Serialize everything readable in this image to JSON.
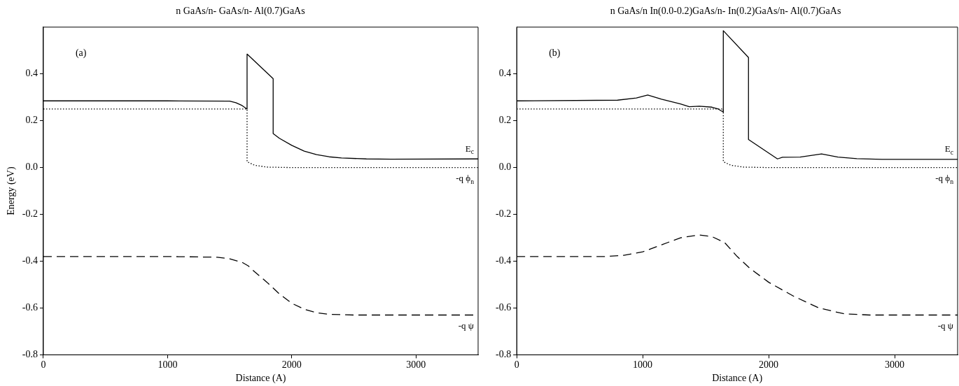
{
  "chart_data": [
    {
      "type": "line",
      "title": "n GaAs/n- GaAs/n- Al(0.7)GaAs",
      "xlabel": "Distance (A)",
      "ylabel": "Energy (eV)",
      "annotations": [
        "(a)"
      ],
      "xlim": [
        0,
        3500
      ],
      "xticks": [
        0,
        1000,
        2000,
        3000
      ],
      "ylim": [
        -0.8,
        0.6
      ],
      "yticks": [
        -0.8,
        -0.6,
        -0.4,
        -0.2,
        {
          "value": 0,
          "label": "0.0"
        },
        0.2,
        0.4
      ],
      "grid": false,
      "legend": false,
      "marker": "none",
      "series": [
        {
          "name": "E$_{c}$",
          "color": "#000000",
          "line_style": "solid",
          "x": [
            0,
            1000,
            1500,
            1550,
            1600,
            1640,
            1640,
            1850,
            1850,
            1900,
            2000,
            2100,
            2200,
            2300,
            2400,
            2600,
            2800,
            3500
          ],
          "values": [
            0.285,
            0.285,
            0.284,
            0.277,
            0.265,
            0.25,
            0.485,
            0.38,
            0.145,
            0.125,
            0.095,
            0.07,
            0.055,
            0.046,
            0.041,
            0.037,
            0.036,
            0.037
          ]
        },
        {
          "name": "-q ϕ$_{n}$",
          "color": "#000000",
          "line_style": "dotted",
          "x": [
            0,
            1640,
            1640,
            1700,
            1800,
            2000,
            3500
          ],
          "values": [
            0.25,
            0.25,
            0.025,
            0.01,
            0.002,
            0.0,
            0.0
          ]
        },
        {
          "name": "-q ψ",
          "color": "#000000",
          "line_style": "dashed",
          "x": [
            0,
            1000,
            1400,
            1500,
            1600,
            1650,
            1700,
            1800,
            1900,
            2000,
            2100,
            2200,
            2300,
            2500,
            3500
          ],
          "values": [
            -0.38,
            -0.38,
            -0.383,
            -0.39,
            -0.405,
            -0.42,
            -0.445,
            -0.49,
            -0.54,
            -0.58,
            -0.605,
            -0.62,
            -0.627,
            -0.63,
            -0.63
          ]
        }
      ]
    },
    {
      "type": "line",
      "title": "n GaAs/n In(0.0-0.2)GaAs/n- In(0.2)GaAs/n- Al(0.7)GaAs",
      "xlabel": "Distance (A)",
      "annotations": [
        "(b)"
      ],
      "xlim": [
        0,
        3500
      ],
      "xticks": [
        0,
        1000,
        2000,
        3000
      ],
      "ylim": [
        -0.8,
        0.6
      ],
      "yticks": [
        -0.8,
        -0.6,
        -0.4,
        -0.2,
        {
          "value": 0,
          "label": "0.0"
        },
        0.2,
        0.4
      ],
      "grid": false,
      "legend": false,
      "marker": "none",
      "series": [
        {
          "name": "E$_{c}$",
          "color": "#000000",
          "line_style": "solid",
          "x": [
            0,
            800,
            950,
            1040,
            1150,
            1300,
            1370,
            1450,
            1550,
            1600,
            1640,
            1640,
            1840,
            1840,
            2070,
            2110,
            2250,
            2420,
            2550,
            2700,
            2900,
            3500
          ],
          "values": [
            0.285,
            0.288,
            0.297,
            0.31,
            0.292,
            0.272,
            0.26,
            0.262,
            0.258,
            0.25,
            0.237,
            0.585,
            0.47,
            0.12,
            0.037,
            0.044,
            0.045,
            0.058,
            0.045,
            0.038,
            0.035,
            0.035
          ]
        },
        {
          "name": "-q ϕ$_{n}$",
          "color": "#000000",
          "line_style": "dotted",
          "x": [
            0,
            1640,
            1640,
            1700,
            1800,
            2000,
            3500
          ],
          "values": [
            0.25,
            0.25,
            0.025,
            0.01,
            0.002,
            0.0,
            0.0
          ]
        },
        {
          "name": "-q ψ",
          "color": "#000000",
          "line_style": "dashed",
          "x": [
            0,
            700,
            850,
            1000,
            1150,
            1300,
            1450,
            1550,
            1650,
            1750,
            1850,
            2000,
            2200,
            2400,
            2600,
            2800,
            3500
          ],
          "values": [
            -0.38,
            -0.38,
            -0.375,
            -0.36,
            -0.33,
            -0.3,
            -0.288,
            -0.295,
            -0.32,
            -0.38,
            -0.43,
            -0.49,
            -0.55,
            -0.6,
            -0.625,
            -0.63,
            -0.63
          ]
        }
      ]
    }
  ]
}
